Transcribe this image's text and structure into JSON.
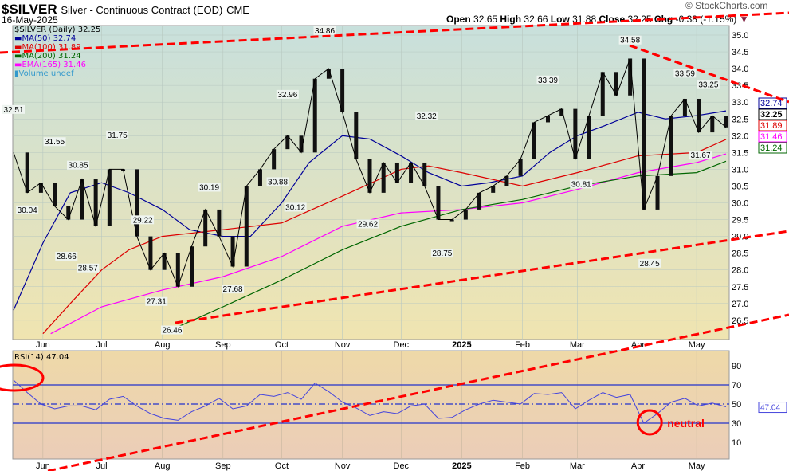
{
  "header": {
    "symbol": "$SILVER",
    "name": "Silver - Continuous Contract (EOD)",
    "exchange": "CME",
    "date": "16-May-2025",
    "brand": "© StockCharts.com",
    "ohlc": {
      "open_label": "Open",
      "open": "32.65",
      "high_label": "High",
      "high": "32.66",
      "low_label": "Low",
      "low": "31.88",
      "close_label": "Close",
      "close": "32.25",
      "chg_label": "Chg",
      "chg": "-0.38 (-1.15%)"
    }
  },
  "legend": {
    "price": "$SILVER (Daily) 32.25",
    "ma50": "MA(50) 32.74",
    "ma100": "MA(100) 31.89",
    "ma200": "MA(200) 31.24",
    "ema165": "EMA(165) 31.46",
    "volume": "Volume undef",
    "rsi": "RSI(14) 47.04"
  },
  "colors": {
    "ma50": "#000099",
    "ma100": "#dd0000",
    "ma200": "#006600",
    "ema165": "#ff00ff",
    "rsi": "#4444dd",
    "annotation": "#ff0000"
  },
  "chart_data": [
    {
      "type": "line",
      "panel": "price",
      "title": "$SILVER (Daily)",
      "ylim": [
        26.5,
        35.0
      ],
      "yticks": [
        "35.0",
        "34.5",
        "34.0",
        "33.5",
        "33.0",
        "32.5",
        "32.0",
        "31.5",
        "31.0",
        "30.5",
        "30.0",
        "29.5",
        "29.0",
        "28.5",
        "28.0",
        "27.5",
        "27.0",
        "26.5"
      ],
      "xticks": [
        {
          "label": "Jun",
          "date": "2024-06-01"
        },
        {
          "label": "Jul",
          "date": "2024-07-01"
        },
        {
          "label": "Aug",
          "date": "2024-08-01"
        },
        {
          "label": "Sep",
          "date": "2024-09-01"
        },
        {
          "label": "Oct",
          "date": "2024-10-01"
        },
        {
          "label": "Nov",
          "date": "2024-11-01"
        },
        {
          "label": "Dec",
          "date": "2024-12-01"
        },
        {
          "label": "2025",
          "date": "2025-01-01"
        },
        {
          "label": "Feb",
          "date": "2025-02-01"
        },
        {
          "label": "Mar",
          "date": "2025-03-01"
        },
        {
          "label": "Apr",
          "date": "2025-04-01"
        },
        {
          "label": "May",
          "date": "2025-05-01"
        }
      ],
      "xrange": [
        "2024-05-17",
        "2025-05-16"
      ],
      "close": [
        [
          "2024-05-17",
          31.5
        ],
        [
          "2024-05-24",
          30.3
        ],
        [
          "2024-05-31",
          30.6
        ],
        [
          "2024-06-07",
          29.9
        ],
        [
          "2024-06-14",
          29.5
        ],
        [
          "2024-06-21",
          30.7
        ],
        [
          "2024-06-28",
          29.3
        ],
        [
          "2024-07-05",
          31.0
        ],
        [
          "2024-07-12",
          31.0
        ],
        [
          "2024-07-19",
          29.0
        ],
        [
          "2024-07-26",
          28.0
        ],
        [
          "2024-08-02",
          28.5
        ],
        [
          "2024-08-09",
          27.5
        ],
        [
          "2024-08-16",
          28.7
        ],
        [
          "2024-08-23",
          29.8
        ],
        [
          "2024-08-30",
          29.0
        ],
        [
          "2024-09-06",
          28.1
        ],
        [
          "2024-09-13",
          30.5
        ],
        [
          "2024-09-20",
          31.0
        ],
        [
          "2024-09-27",
          31.6
        ],
        [
          "2024-10-04",
          32.0
        ],
        [
          "2024-10-11",
          31.5
        ],
        [
          "2024-10-18",
          33.7
        ],
        [
          "2024-10-25",
          34.0
        ],
        [
          "2024-11-01",
          32.7
        ],
        [
          "2024-11-08",
          31.3
        ],
        [
          "2024-11-15",
          30.3
        ],
        [
          "2024-11-22",
          31.2
        ],
        [
          "2024-11-29",
          30.6
        ],
        [
          "2024-12-06",
          31.2
        ],
        [
          "2024-12-13",
          30.5
        ],
        [
          "2024-12-20",
          29.5
        ],
        [
          "2024-12-27",
          29.5
        ],
        [
          "2025-01-03",
          29.8
        ],
        [
          "2025-01-10",
          30.3
        ],
        [
          "2025-01-17",
          30.5
        ],
        [
          "2025-01-24",
          30.8
        ],
        [
          "2025-01-31",
          31.3
        ],
        [
          "2025-02-07",
          32.4
        ],
        [
          "2025-02-14",
          32.6
        ],
        [
          "2025-02-21",
          32.8
        ],
        [
          "2025-02-28",
          31.3
        ],
        [
          "2025-03-07",
          32.6
        ],
        [
          "2025-03-14",
          33.9
        ],
        [
          "2025-03-21",
          33.2
        ],
        [
          "2025-03-28",
          34.3
        ],
        [
          "2025-04-04",
          29.8
        ],
        [
          "2025-04-11",
          30.8
        ],
        [
          "2025-04-18",
          32.6
        ],
        [
          "2025-04-25",
          33.1
        ],
        [
          "2025-05-02",
          32.1
        ],
        [
          "2025-05-09",
          32.6
        ],
        [
          "2025-05-16",
          32.25
        ]
      ],
      "series": [
        {
          "name": "MA(50)",
          "key": "ma50",
          "last": "32.74",
          "values": [
            [
              "2024-05-17",
              26.8
            ],
            [
              "2024-06-01",
              28.8
            ],
            [
              "2024-06-15",
              30.3
            ],
            [
              "2024-07-01",
              30.6
            ],
            [
              "2024-07-15",
              30.3
            ],
            [
              "2024-08-01",
              29.8
            ],
            [
              "2024-08-15",
              29.2
            ],
            [
              "2024-09-01",
              29.0
            ],
            [
              "2024-09-15",
              29.0
            ],
            [
              "2024-10-01",
              30.0
            ],
            [
              "2024-10-15",
              31.2
            ],
            [
              "2024-11-01",
              32.0
            ],
            [
              "2024-11-15",
              31.9
            ],
            [
              "2024-12-01",
              31.4
            ],
            [
              "2024-12-15",
              30.9
            ],
            [
              "2025-01-01",
              30.5
            ],
            [
              "2025-01-15",
              30.6
            ],
            [
              "2025-02-01",
              30.8
            ],
            [
              "2025-02-15",
              31.5
            ],
            [
              "2025-03-01",
              32.0
            ],
            [
              "2025-03-15",
              32.3
            ],
            [
              "2025-04-01",
              32.7
            ],
            [
              "2025-04-15",
              32.5
            ],
            [
              "2025-05-01",
              32.6
            ],
            [
              "2025-05-16",
              32.74
            ]
          ]
        },
        {
          "name": "MA(100)",
          "key": "ma100",
          "last": "31.89",
          "values": [
            [
              "2024-06-01",
              26.1
            ],
            [
              "2024-06-15",
              27.0
            ],
            [
              "2024-07-01",
              28.0
            ],
            [
              "2024-07-15",
              28.6
            ],
            [
              "2024-08-01",
              29.0
            ],
            [
              "2024-09-01",
              29.2
            ],
            [
              "2024-10-01",
              29.4
            ],
            [
              "2024-11-01",
              30.2
            ],
            [
              "2024-12-01",
              31.0
            ],
            [
              "2024-12-15",
              31.1
            ],
            [
              "2025-01-01",
              30.9
            ],
            [
              "2025-02-01",
              30.5
            ],
            [
              "2025-03-01",
              30.9
            ],
            [
              "2025-04-01",
              31.4
            ],
            [
              "2025-05-01",
              31.5
            ],
            [
              "2025-05-16",
              31.89
            ]
          ]
        },
        {
          "name": "EMA(165)",
          "key": "ema165",
          "last": "31.46",
          "values": [
            [
              "2024-06-05",
              26.1
            ],
            [
              "2024-07-01",
              26.9
            ],
            [
              "2024-08-01",
              27.4
            ],
            [
              "2024-09-01",
              27.8
            ],
            [
              "2024-10-01",
              28.4
            ],
            [
              "2024-11-01",
              29.3
            ],
            [
              "2024-12-01",
              29.7
            ],
            [
              "2025-01-01",
              29.8
            ],
            [
              "2025-02-01",
              30.0
            ],
            [
              "2025-03-01",
              30.4
            ],
            [
              "2025-04-01",
              30.9
            ],
            [
              "2025-05-01",
              31.2
            ],
            [
              "2025-05-16",
              31.46
            ]
          ]
        },
        {
          "name": "MA(200)",
          "key": "ma200",
          "last": "31.24",
          "values": [
            [
              "2024-08-01",
              26.1
            ],
            [
              "2024-09-01",
              26.9
            ],
            [
              "2024-10-01",
              27.7
            ],
            [
              "2024-11-01",
              28.6
            ],
            [
              "2024-12-01",
              29.3
            ],
            [
              "2025-01-01",
              29.8
            ],
            [
              "2025-02-01",
              30.1
            ],
            [
              "2025-03-01",
              30.5
            ],
            [
              "2025-04-01",
              30.8
            ],
            [
              "2025-05-01",
              30.9
            ],
            [
              "2025-05-16",
              31.24
            ]
          ]
        }
      ],
      "annotations": [
        [
          "2024-05-17",
          "32.51",
          "above"
        ],
        [
          "2024-05-24",
          "30.04",
          "below"
        ],
        [
          "2024-06-07",
          "31.55",
          "above"
        ],
        [
          "2024-06-19",
          "30.85",
          "above"
        ],
        [
          "2024-06-13",
          "28.66",
          "below"
        ],
        [
          "2024-06-24",
          "28.57",
          "below"
        ],
        [
          "2024-07-09",
          "31.75",
          "above"
        ],
        [
          "2024-07-22",
          "29.22",
          "above"
        ],
        [
          "2024-07-29",
          "27.31",
          "below"
        ],
        [
          "2024-08-06",
          "26.46",
          "below"
        ],
        [
          "2024-08-25",
          "30.19",
          "above"
        ],
        [
          "2024-09-06",
          "27.68",
          "below"
        ],
        [
          "2024-10-04",
          "32.96",
          "above"
        ],
        [
          "2024-09-29",
          "30.88",
          "below"
        ],
        [
          "2024-10-08",
          "30.12",
          "below"
        ],
        [
          "2024-10-23",
          "34.86",
          "above"
        ],
        [
          "2024-11-14",
          "29.62",
          "below"
        ],
        [
          "2024-12-14",
          "32.32",
          "above"
        ],
        [
          "2024-12-22",
          "28.75",
          "below"
        ],
        [
          "2025-02-14",
          "33.39",
          "above"
        ],
        [
          "2025-03-03",
          "30.81",
          "below"
        ],
        [
          "2025-03-28",
          "34.58",
          "above"
        ],
        [
          "2025-04-07",
          "28.45",
          "below"
        ],
        [
          "2025-04-25",
          "33.59",
          "above"
        ],
        [
          "2025-05-07",
          "33.25",
          "above"
        ],
        [
          "2025-05-03",
          "31.67",
          "below"
        ]
      ]
    },
    {
      "type": "line",
      "panel": "rsi",
      "title": "RSI(14)",
      "ylim": [
        0,
        100
      ],
      "yticks": [
        "90",
        "70",
        "50",
        "30",
        "10"
      ],
      "levels": [
        70,
        50,
        30
      ],
      "last": "47.04",
      "note": "neutral",
      "values": [
        [
          "2024-05-17",
          75
        ],
        [
          "2024-05-24",
          62
        ],
        [
          "2024-05-31",
          50
        ],
        [
          "2024-06-07",
          45
        ],
        [
          "2024-06-14",
          48
        ],
        [
          "2024-06-21",
          48
        ],
        [
          "2024-06-28",
          44
        ],
        [
          "2024-07-05",
          55
        ],
        [
          "2024-07-12",
          58
        ],
        [
          "2024-07-19",
          48
        ],
        [
          "2024-07-26",
          40
        ],
        [
          "2024-08-02",
          35
        ],
        [
          "2024-08-09",
          33
        ],
        [
          "2024-08-16",
          42
        ],
        [
          "2024-08-23",
          48
        ],
        [
          "2024-08-30",
          56
        ],
        [
          "2024-09-06",
          45
        ],
        [
          "2024-09-13",
          48
        ],
        [
          "2024-09-20",
          60
        ],
        [
          "2024-09-27",
          58
        ],
        [
          "2024-10-04",
          62
        ],
        [
          "2024-10-11",
          55
        ],
        [
          "2024-10-18",
          72
        ],
        [
          "2024-10-25",
          63
        ],
        [
          "2024-11-01",
          52
        ],
        [
          "2024-11-08",
          46
        ],
        [
          "2024-11-15",
          38
        ],
        [
          "2024-11-22",
          42
        ],
        [
          "2024-11-29",
          40
        ],
        [
          "2024-12-06",
          48
        ],
        [
          "2024-12-13",
          50
        ],
        [
          "2024-12-20",
          35
        ],
        [
          "2024-12-27",
          36
        ],
        [
          "2025-01-03",
          44
        ],
        [
          "2025-01-10",
          50
        ],
        [
          "2025-01-17",
          54
        ],
        [
          "2025-01-24",
          52
        ],
        [
          "2025-01-31",
          50
        ],
        [
          "2025-02-07",
          61
        ],
        [
          "2025-02-14",
          60
        ],
        [
          "2025-02-21",
          62
        ],
        [
          "2025-02-28",
          45
        ],
        [
          "2025-03-07",
          54
        ],
        [
          "2025-03-14",
          62
        ],
        [
          "2025-03-21",
          57
        ],
        [
          "2025-03-28",
          60
        ],
        [
          "2025-04-04",
          30
        ],
        [
          "2025-04-11",
          40
        ],
        [
          "2025-04-18",
          52
        ],
        [
          "2025-04-25",
          56
        ],
        [
          "2025-05-02",
          48
        ],
        [
          "2025-05-09",
          51
        ],
        [
          "2025-05-16",
          47.04
        ]
      ]
    }
  ]
}
